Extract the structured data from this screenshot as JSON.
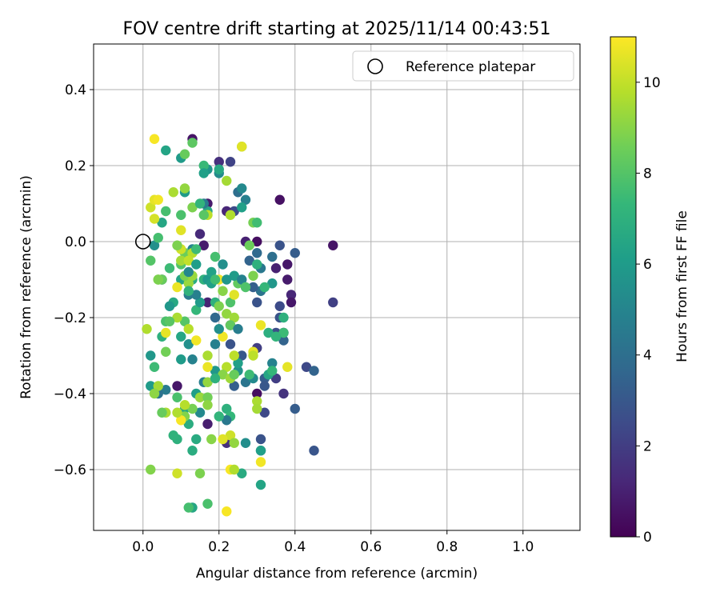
{
  "chart_data": {
    "type": "scatter",
    "title": "FOV centre drift starting at 2025/11/14 00:43:51",
    "xlabel": "Angular distance from reference (arcmin)",
    "ylabel": "Rotation from reference (arcmin)",
    "xlim": [
      -0.13,
      1.15
    ],
    "ylim": [
      -0.76,
      0.52
    ],
    "xticks": [
      0.0,
      0.2,
      0.4,
      0.6,
      0.8,
      1.0
    ],
    "xtick_labels": [
      "0.0",
      "0.2",
      "0.4",
      "0.6",
      "0.8",
      "1.0"
    ],
    "yticks": [
      0.4,
      0.2,
      0.0,
      -0.2,
      -0.4,
      -0.6
    ],
    "ytick_labels": [
      "0.4",
      "0.2",
      "0.0",
      "−0.2",
      "−0.4",
      "−0.6"
    ],
    "grid": true,
    "legend": {
      "position": "top-right",
      "label": "Reference platepar"
    },
    "reference_point": {
      "x": 0.0,
      "y": 0.0
    },
    "colorbar": {
      "label": "Hours from first FF file",
      "range": [
        0,
        11
      ],
      "ticks": [
        0,
        2,
        4,
        6,
        8,
        10
      ],
      "tick_labels": [
        "0",
        "2",
        "4",
        "6",
        "8",
        "10"
      ],
      "colormap": [
        "#440154",
        "#482878",
        "#3e4a89",
        "#31688e",
        "#26828e",
        "#1f9e89",
        "#35b779",
        "#6ece58",
        "#b5de2b",
        "#fde725"
      ]
    },
    "points": [
      [
        0.13,
        0.27,
        0.6
      ],
      [
        0.2,
        0.21,
        1.5
      ],
      [
        0.23,
        0.21,
        2.2
      ],
      [
        0.36,
        0.11,
        0.5
      ],
      [
        0.24,
        0.08,
        2.5
      ],
      [
        0.22,
        0.08,
        1.2
      ],
      [
        0.27,
        0.0,
        1.0
      ],
      [
        0.3,
        0.0,
        0.4
      ],
      [
        0.36,
        -0.01,
        2.8
      ],
      [
        0.5,
        -0.01,
        0.6
      ],
      [
        0.4,
        -0.03,
        3.2
      ],
      [
        0.35,
        -0.07,
        1.0
      ],
      [
        0.38,
        -0.06,
        0.7
      ],
      [
        0.38,
        -0.1,
        0.8
      ],
      [
        0.39,
        -0.14,
        1.2
      ],
      [
        0.39,
        -0.16,
        0.7
      ],
      [
        0.36,
        -0.17,
        2.5
      ],
      [
        0.5,
        -0.16,
        2.1
      ],
      [
        0.36,
        -0.2,
        2.8
      ],
      [
        0.35,
        -0.24,
        2.6
      ],
      [
        0.37,
        -0.24,
        0.7
      ],
      [
        0.37,
        -0.26,
        3.5
      ],
      [
        0.3,
        -0.28,
        2.0
      ],
      [
        0.26,
        -0.3,
        3.0
      ],
      [
        0.23,
        -0.27,
        2.8
      ],
      [
        0.35,
        -0.36,
        2.0
      ],
      [
        0.37,
        -0.4,
        1.6
      ],
      [
        0.3,
        -0.4,
        0.4
      ],
      [
        0.32,
        -0.45,
        2.4
      ],
      [
        0.31,
        -0.52,
        2.8
      ],
      [
        0.31,
        -0.55,
        3.8
      ],
      [
        0.32,
        -0.36,
        3.2
      ],
      [
        0.32,
        -0.38,
        3.0
      ],
      [
        0.43,
        -0.33,
        2.4
      ],
      [
        0.45,
        -0.34,
        3.5
      ],
      [
        0.4,
        -0.44,
        3.2
      ],
      [
        0.45,
        -0.55,
        2.9
      ],
      [
        0.22,
        -0.53,
        1.5
      ],
      [
        0.17,
        -0.48,
        0.9
      ],
      [
        0.16,
        -0.01,
        0.8
      ],
      [
        0.15,
        0.02,
        1.3
      ],
      [
        0.17,
        0.1,
        0.8
      ],
      [
        0.09,
        -0.38,
        0.7
      ],
      [
        0.28,
        -0.05,
        3.5
      ],
      [
        0.3,
        -0.03,
        3.8
      ],
      [
        0.34,
        -0.04,
        4.0
      ],
      [
        0.31,
        -0.07,
        4.4
      ],
      [
        0.27,
        0.11,
        4.8
      ],
      [
        0.25,
        0.13,
        4.0
      ],
      [
        0.13,
        -0.02,
        5.0
      ],
      [
        0.12,
        -0.14,
        4.6
      ],
      [
        0.19,
        -0.2,
        3.7
      ],
      [
        0.23,
        -0.22,
        1.0
      ],
      [
        0.17,
        -0.16,
        1.1
      ],
      [
        0.27,
        -0.37,
        4.3
      ],
      [
        0.24,
        -0.38,
        3.3
      ],
      [
        0.29,
        -0.36,
        5.2
      ],
      [
        0.33,
        -0.35,
        6.5
      ],
      [
        0.34,
        -0.32,
        4.9
      ],
      [
        0.34,
        -0.11,
        5.8
      ],
      [
        0.31,
        -0.13,
        4.2
      ],
      [
        0.3,
        -0.16,
        2.8
      ],
      [
        0.29,
        -0.12,
        3.3
      ],
      [
        0.26,
        0.14,
        5.2
      ],
      [
        0.2,
        0.18,
        5.3
      ],
      [
        0.17,
        0.19,
        5.7
      ],
      [
        0.17,
        0.08,
        6.6
      ],
      [
        0.16,
        0.1,
        4.6
      ],
      [
        0.11,
        0.13,
        6.0
      ],
      [
        0.05,
        0.05,
        6.5
      ],
      [
        0.03,
        -0.01,
        5.5
      ],
      [
        0.05,
        -0.1,
        3.0
      ],
      [
        0.1,
        -0.1,
        6.4
      ],
      [
        0.1,
        -0.25,
        6.5
      ],
      [
        0.12,
        -0.27,
        5.5
      ],
      [
        0.13,
        -0.31,
        4.9
      ],
      [
        0.1,
        -0.31,
        6.0
      ],
      [
        0.14,
        -0.4,
        6.1
      ],
      [
        0.11,
        -0.44,
        6.5
      ],
      [
        0.15,
        -0.45,
        5.2
      ],
      [
        0.12,
        -0.48,
        6.8
      ],
      [
        0.16,
        -0.37,
        4.7
      ],
      [
        0.19,
        -0.34,
        5.8
      ],
      [
        0.19,
        -0.27,
        4.8
      ],
      [
        0.22,
        -0.44,
        7.0
      ],
      [
        0.23,
        -0.46,
        7.3
      ],
      [
        0.25,
        -0.34,
        5.6
      ],
      [
        0.25,
        -0.32,
        6.2
      ],
      [
        0.26,
        -0.61,
        6.7
      ],
      [
        0.31,
        -0.64,
        6.4
      ],
      [
        0.27,
        -0.53,
        5.4
      ],
      [
        0.22,
        -0.47,
        4.4
      ],
      [
        0.2,
        -0.46,
        7.2
      ],
      [
        0.18,
        -0.52,
        9.0
      ],
      [
        0.14,
        -0.52,
        6.7
      ],
      [
        0.13,
        -0.55,
        6.8
      ],
      [
        0.09,
        -0.52,
        7.0
      ],
      [
        0.08,
        -0.51,
        7.1
      ],
      [
        0.06,
        -0.39,
        4.6
      ],
      [
        0.04,
        -0.4,
        4.2
      ],
      [
        0.02,
        -0.38,
        6.0
      ],
      [
        0.02,
        -0.3,
        5.8
      ],
      [
        0.03,
        -0.33,
        7.5
      ],
      [
        0.05,
        -0.25,
        7.0
      ],
      [
        0.06,
        -0.21,
        7.8
      ],
      [
        0.06,
        -0.29,
        8.6
      ],
      [
        0.08,
        -0.16,
        6.6
      ],
      [
        0.11,
        -0.21,
        8.0
      ],
      [
        0.12,
        -0.23,
        9.8
      ],
      [
        0.14,
        -0.26,
        10.8
      ],
      [
        0.14,
        -0.18,
        7.3
      ],
      [
        0.15,
        -0.16,
        6.0
      ],
      [
        0.14,
        -0.14,
        4.8
      ],
      [
        0.13,
        -0.1,
        6.8
      ],
      [
        0.12,
        -0.11,
        9.3
      ],
      [
        0.11,
        -0.09,
        8.8
      ],
      [
        0.1,
        -0.06,
        8.0
      ],
      [
        0.11,
        -0.03,
        8.5
      ],
      [
        0.13,
        -0.03,
        9.8
      ],
      [
        0.14,
        -0.02,
        7.5
      ],
      [
        0.16,
        -0.1,
        7.1
      ],
      [
        0.17,
        -0.1,
        5.9
      ],
      [
        0.18,
        -0.08,
        6.3
      ],
      [
        0.19,
        -0.04,
        7.7
      ],
      [
        0.2,
        -0.1,
        10.8
      ],
      [
        0.19,
        -0.16,
        7.0
      ],
      [
        0.2,
        -0.17,
        8.8
      ],
      [
        0.21,
        -0.13,
        9.0
      ],
      [
        0.22,
        -0.19,
        9.2
      ],
      [
        0.23,
        -0.16,
        7.9
      ],
      [
        0.24,
        -0.14,
        10.5
      ],
      [
        0.25,
        -0.11,
        8.3
      ],
      [
        0.24,
        -0.09,
        6.0
      ],
      [
        0.22,
        -0.1,
        5.8
      ],
      [
        0.26,
        -0.1,
        4.9
      ],
      [
        0.24,
        -0.2,
        9.4
      ],
      [
        0.23,
        -0.22,
        8.3
      ],
      [
        0.21,
        -0.25,
        10.8
      ],
      [
        0.22,
        -0.33,
        9.8
      ],
      [
        0.24,
        -0.3,
        9.9
      ],
      [
        0.21,
        -0.35,
        9.0
      ],
      [
        0.23,
        -0.36,
        9.4
      ],
      [
        0.17,
        -0.33,
        10.7
      ],
      [
        0.17,
        -0.3,
        9.6
      ],
      [
        0.17,
        -0.37,
        9.2
      ],
      [
        0.15,
        -0.41,
        9.3
      ],
      [
        0.17,
        -0.41,
        8.6
      ],
      [
        0.17,
        -0.43,
        9.1
      ],
      [
        0.13,
        -0.44,
        8.7
      ],
      [
        0.11,
        -0.43,
        9.8
      ],
      [
        0.11,
        -0.46,
        8.9
      ],
      [
        0.1,
        -0.47,
        10.9
      ],
      [
        0.09,
        -0.45,
        9.7
      ],
      [
        0.09,
        -0.41,
        7.8
      ],
      [
        0.06,
        -0.45,
        9.6
      ],
      [
        0.05,
        -0.45,
        8.4
      ],
      [
        0.04,
        -0.38,
        9.5
      ],
      [
        0.03,
        -0.4,
        9.1
      ],
      [
        0.01,
        -0.23,
        9.7
      ],
      [
        0.06,
        -0.24,
        10.6
      ],
      [
        0.09,
        -0.2,
        9.6
      ],
      [
        0.07,
        -0.21,
        8.1
      ],
      [
        0.1,
        -0.02,
        10.2
      ],
      [
        0.1,
        0.03,
        10.5
      ],
      [
        0.09,
        -0.01,
        8.8
      ],
      [
        0.1,
        -0.05,
        9.5
      ],
      [
        0.12,
        -0.05,
        10.0
      ],
      [
        0.13,
        -0.09,
        9.3
      ],
      [
        0.09,
        -0.12,
        10.7
      ],
      [
        0.05,
        -0.1,
        8.4
      ],
      [
        0.04,
        -0.1,
        9.0
      ],
      [
        0.02,
        -0.05,
        8.0
      ],
      [
        0.02,
        0.09,
        10.2
      ],
      [
        0.03,
        0.11,
        10.6
      ],
      [
        0.04,
        0.11,
        10.8
      ],
      [
        0.03,
        0.06,
        10.3
      ],
      [
        0.04,
        0.01,
        7.7
      ],
      [
        0.03,
        0.27,
        10.9
      ],
      [
        0.06,
        0.24,
        6.4
      ],
      [
        0.1,
        0.22,
        6.0
      ],
      [
        0.11,
        0.23,
        8.4
      ],
      [
        0.13,
        0.26,
        8.2
      ],
      [
        0.16,
        0.2,
        7.4
      ],
      [
        0.16,
        0.18,
        6.2
      ],
      [
        0.2,
        0.19,
        6.6
      ],
      [
        0.26,
        0.25,
        8.5
      ],
      [
        0.26,
        0.25,
        10.5
      ],
      [
        0.22,
        0.16,
        9.5
      ],
      [
        0.23,
        0.07,
        9.7
      ],
      [
        0.26,
        0.09,
        6.2
      ],
      [
        0.29,
        0.05,
        8.7
      ],
      [
        0.3,
        0.05,
        7.6
      ],
      [
        0.28,
        -0.01,
        8.5
      ],
      [
        0.3,
        -0.06,
        7.0
      ],
      [
        0.27,
        -0.12,
        7.9
      ],
      [
        0.29,
        -0.09,
        8.8
      ],
      [
        0.32,
        -0.12,
        7.3
      ],
      [
        0.31,
        -0.22,
        10.7
      ],
      [
        0.29,
        -0.29,
        10.6
      ],
      [
        0.29,
        -0.3,
        9.9
      ],
      [
        0.3,
        -0.42,
        9.6
      ],
      [
        0.28,
        -0.35,
        7.5
      ],
      [
        0.3,
        -0.44,
        9.5
      ],
      [
        0.31,
        -0.58,
        10.8
      ],
      [
        0.38,
        -0.33,
        10.6
      ],
      [
        0.34,
        -0.34,
        7.3
      ],
      [
        0.37,
        -0.24,
        7.5
      ],
      [
        0.37,
        -0.2,
        7.0
      ],
      [
        0.33,
        -0.24,
        6.9
      ],
      [
        0.35,
        -0.25,
        7.2
      ],
      [
        0.31,
        -0.55,
        6.2
      ],
      [
        0.23,
        -0.6,
        10.9
      ],
      [
        0.23,
        -0.51,
        10.2
      ],
      [
        0.21,
        -0.52,
        10.5
      ],
      [
        0.24,
        -0.53,
        9.2
      ],
      [
        0.24,
        -0.6,
        9.7
      ],
      [
        0.22,
        -0.71,
        10.9
      ],
      [
        0.17,
        -0.69,
        7.8
      ],
      [
        0.13,
        -0.7,
        6.5
      ],
      [
        0.12,
        -0.7,
        7.7
      ],
      [
        0.15,
        -0.61,
        8.8
      ],
      [
        0.09,
        -0.61,
        10.2
      ],
      [
        0.02,
        -0.6,
        8.9
      ],
      [
        0.07,
        -0.17,
        5.8
      ],
      [
        0.19,
        -0.36,
        7.0
      ],
      [
        0.25,
        -0.23,
        4.7
      ],
      [
        0.21,
        -0.06,
        5.5
      ],
      [
        0.18,
        -0.11,
        6.2
      ],
      [
        0.19,
        -0.1,
        7.6
      ],
      [
        0.2,
        -0.23,
        5.4
      ],
      [
        0.12,
        -0.13,
        7.1
      ],
      [
        0.1,
        0.07,
        7.8
      ],
      [
        0.08,
        0.13,
        9.6
      ],
      [
        0.11,
        0.14,
        9.2
      ],
      [
        0.17,
        0.07,
        9.9
      ],
      [
        0.16,
        0.07,
        8.1
      ],
      [
        0.13,
        0.09,
        8.8
      ],
      [
        0.15,
        0.1,
        7.2
      ],
      [
        0.06,
        0.08,
        7.7
      ],
      [
        0.14,
        -0.06,
        6.1
      ],
      [
        0.12,
        -0.08,
        5.1
      ],
      [
        0.04,
        -0.1,
        8.8
      ],
      [
        0.07,
        -0.07,
        7.5
      ],
      [
        0.24,
        -0.35,
        8.4
      ]
    ]
  }
}
